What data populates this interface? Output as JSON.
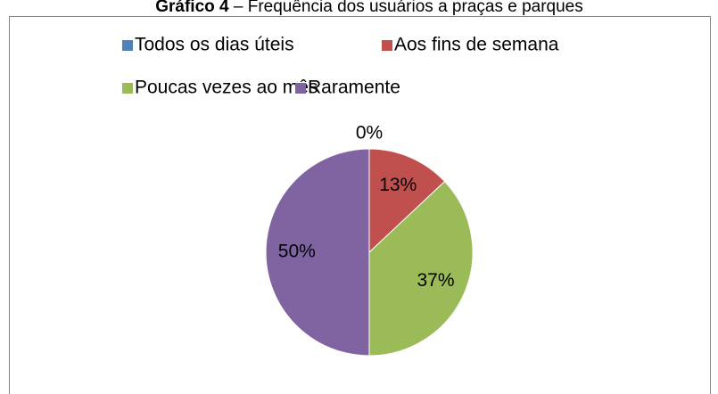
{
  "chart_data": {
    "type": "pie",
    "title": {
      "label": "Gráfico 4",
      "text": "– Frequência dos usuários a praças e parques"
    },
    "categories": [
      "Todos os dias úteis",
      "Aos fins de semana",
      "Poucas vezes ao mês",
      "Raramente"
    ],
    "values": [
      0,
      13,
      37,
      50
    ],
    "value_labels": [
      "0%",
      "13%",
      "37%",
      "50%"
    ],
    "colors": [
      "#4f81bd",
      "#c0504d",
      "#9bbb59",
      "#8064a2"
    ],
    "legend": "top"
  }
}
